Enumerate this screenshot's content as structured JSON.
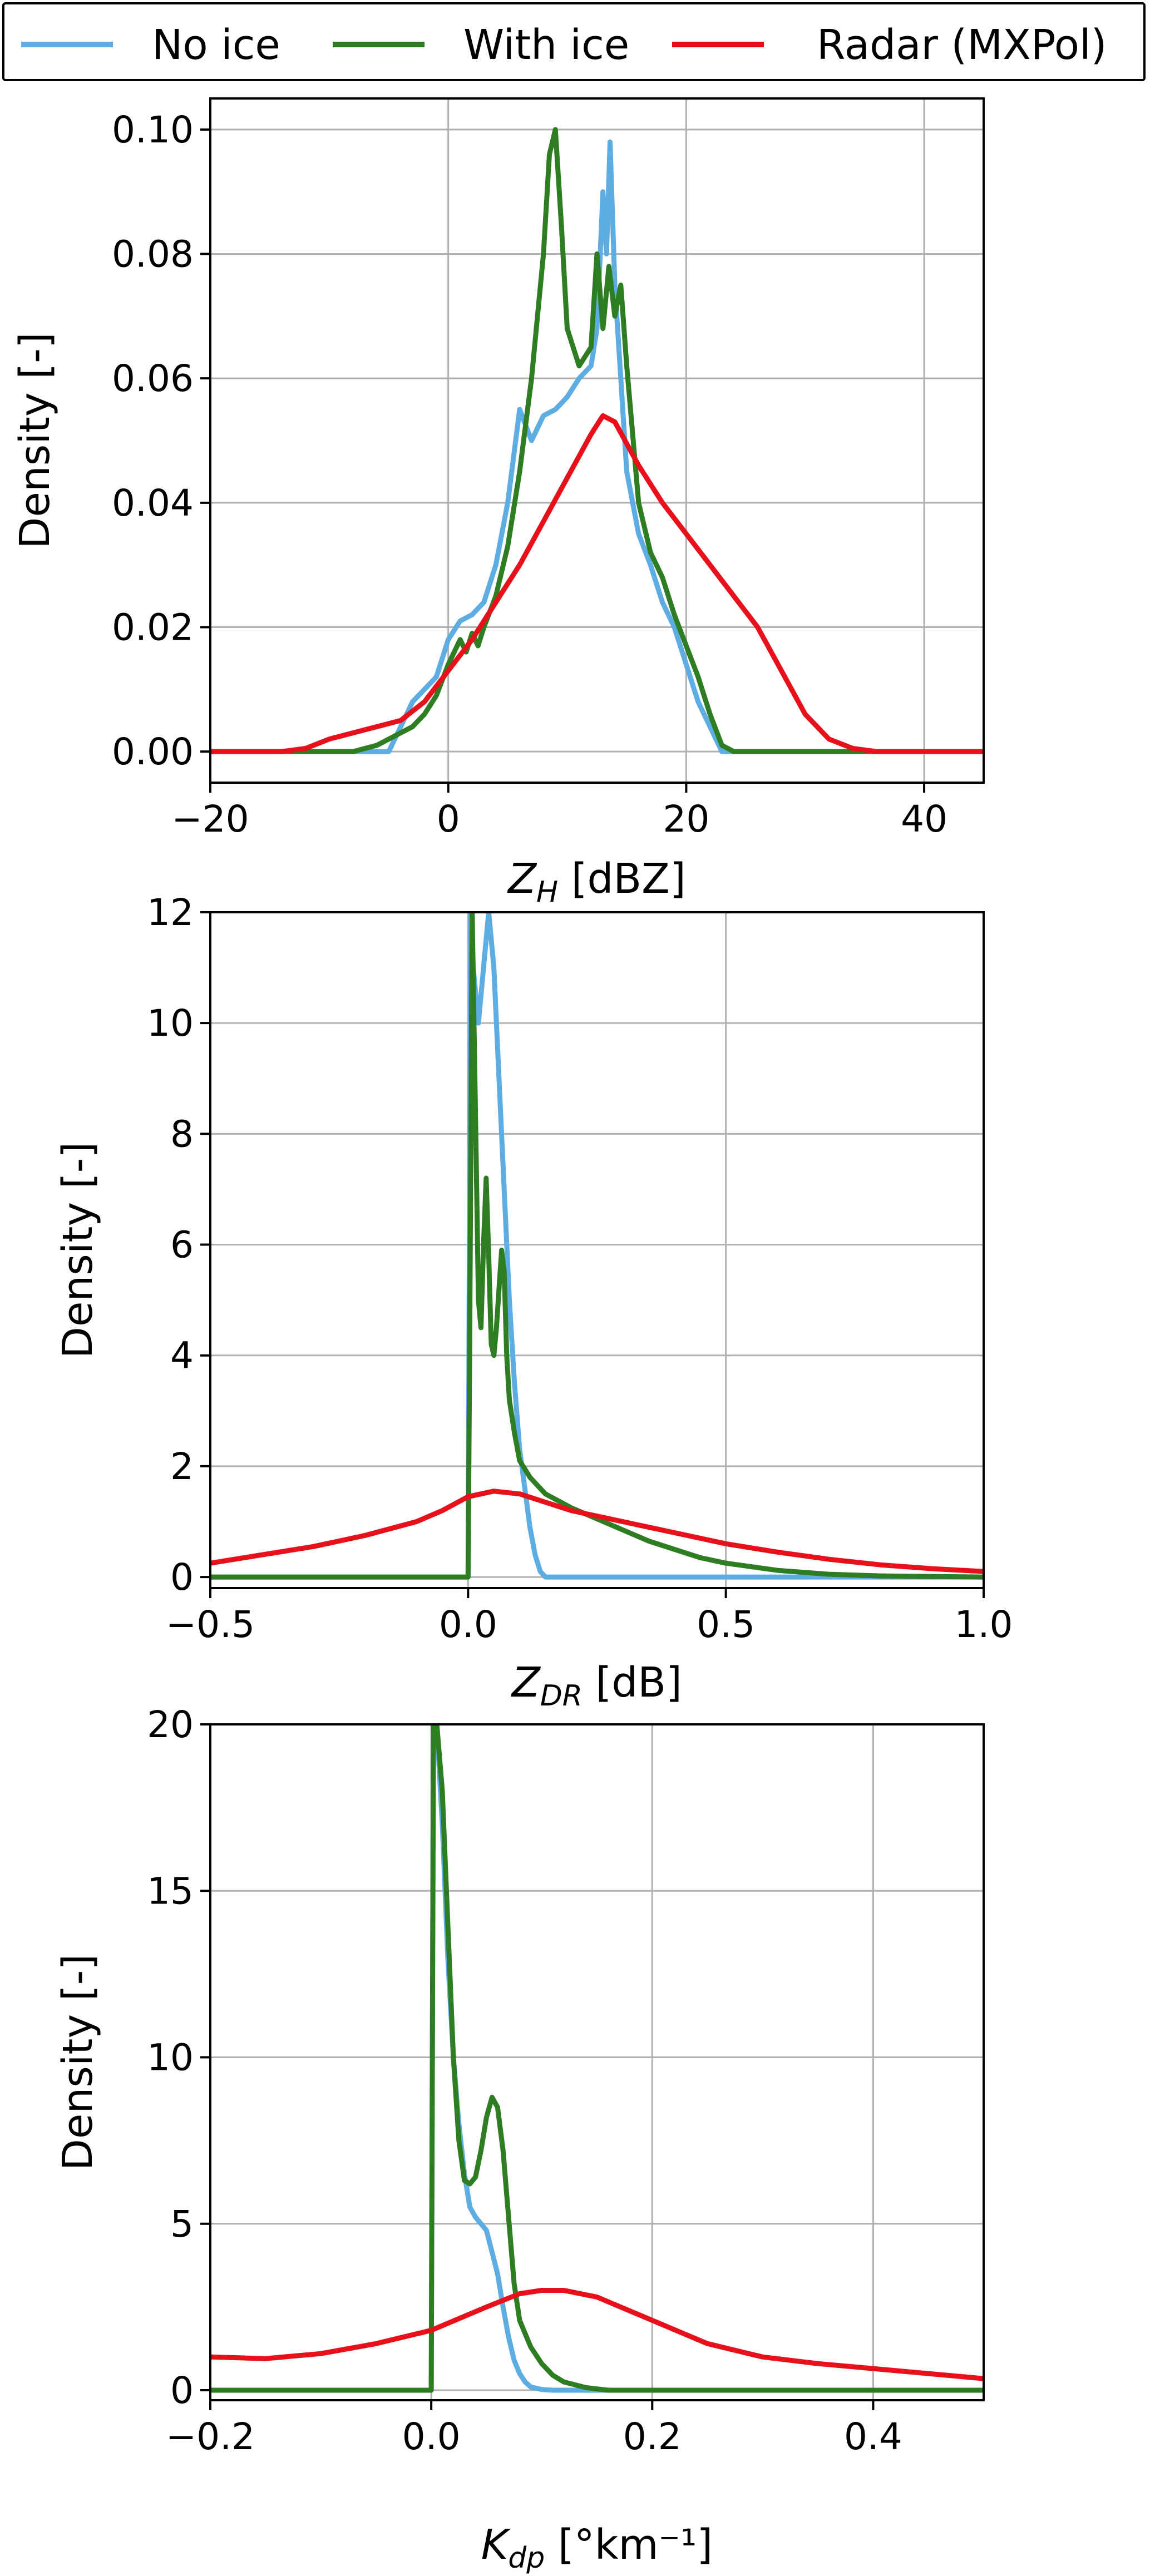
{
  "legend": {
    "placement": "top",
    "items": [
      {
        "label": "No ice",
        "color": "#5DADE2"
      },
      {
        "label": "With ice",
        "color": "#2E7D22"
      },
      {
        "label": "Radar (MXPol)",
        "color": "#E8101A"
      }
    ]
  },
  "chart_data": [
    {
      "type": "line",
      "xlabel": "Z",
      "xlabel_sub": "H",
      "xlabel_unit": " [dBZ]",
      "ylabel": "Density [-]",
      "xlim": [
        -20,
        45
      ],
      "ylim": [
        -0.005,
        0.105
      ],
      "xticks": [
        -20,
        0,
        20,
        40
      ],
      "xtick_labels": [
        "−20",
        "0",
        "20",
        "40"
      ],
      "yticks": [
        0,
        0.02,
        0.04,
        0.06,
        0.08,
        0.1
      ],
      "ytick_labels": [
        "0.00",
        "0.02",
        "0.04",
        "0.06",
        "0.08",
        "0.10"
      ],
      "grid": true,
      "series": [
        {
          "name": "No ice",
          "color": "#5DADE2",
          "x": [
            -20,
            -5,
            -4,
            -3,
            -2,
            -1,
            0,
            1,
            2,
            3,
            4,
            5,
            6,
            7,
            8,
            9,
            10,
            11,
            12,
            12.5,
            13,
            13.3,
            13.6,
            14,
            14.5,
            15,
            16,
            17,
            18,
            19,
            20,
            21,
            22,
            23,
            24,
            45
          ],
          "y": [
            0,
            0,
            0.004,
            0.008,
            0.01,
            0.012,
            0.018,
            0.021,
            0.022,
            0.024,
            0.03,
            0.04,
            0.055,
            0.05,
            0.054,
            0.055,
            0.057,
            0.06,
            0.062,
            0.068,
            0.09,
            0.08,
            0.098,
            0.075,
            0.06,
            0.045,
            0.035,
            0.03,
            0.024,
            0.02,
            0.014,
            0.008,
            0.004,
            0,
            0,
            0
          ]
        },
        {
          "name": "With ice",
          "color": "#2E7D22",
          "x": [
            -20,
            -8,
            -6,
            -4,
            -3,
            -2,
            -1,
            0,
            1,
            1.5,
            2,
            2.5,
            3,
            4,
            5,
            6,
            7,
            8,
            8.5,
            9,
            9.5,
            10,
            11,
            12,
            12.5,
            13,
            13.5,
            14,
            14.5,
            15,
            16,
            17,
            18,
            19,
            20,
            21,
            22,
            23,
            24,
            45
          ],
          "y": [
            0,
            0,
            0.001,
            0.003,
            0.004,
            0.006,
            0.009,
            0.014,
            0.018,
            0.016,
            0.019,
            0.017,
            0.02,
            0.025,
            0.033,
            0.045,
            0.06,
            0.08,
            0.096,
            0.1,
            0.085,
            0.068,
            0.062,
            0.065,
            0.08,
            0.068,
            0.078,
            0.07,
            0.075,
            0.062,
            0.04,
            0.032,
            0.028,
            0.022,
            0.017,
            0.012,
            0.006,
            0.001,
            0,
            0
          ]
        },
        {
          "name": "Radar (MXPol)",
          "color": "#E8101A",
          "x": [
            -20,
            -14,
            -12,
            -10,
            -8,
            -6,
            -4,
            -2,
            0,
            2,
            4,
            6,
            8,
            10,
            12,
            13,
            14,
            16,
            18,
            20,
            22,
            24,
            26,
            28,
            30,
            32,
            34,
            36,
            45
          ],
          "y": [
            0,
            0,
            0.0005,
            0.002,
            0.003,
            0.004,
            0.005,
            0.008,
            0.013,
            0.018,
            0.024,
            0.03,
            0.037,
            0.044,
            0.051,
            0.054,
            0.053,
            0.046,
            0.04,
            0.035,
            0.03,
            0.025,
            0.02,
            0.013,
            0.006,
            0.002,
            0.0005,
            0,
            0
          ]
        }
      ]
    },
    {
      "type": "line",
      "xlabel": "Z",
      "xlabel_sub": "DR",
      "xlabel_unit": " [dB]",
      "ylabel": "Density [-]",
      "xlim": [
        -0.5,
        1.0
      ],
      "ylim": [
        -0.2,
        12
      ],
      "xticks": [
        -0.5,
        0,
        0.5,
        1
      ],
      "xtick_labels": [
        "−0.5",
        "0.0",
        "0.5",
        "1.0"
      ],
      "yticks": [
        0,
        2,
        4,
        6,
        8,
        10,
        12
      ],
      "ytick_labels": [
        "0",
        "2",
        "4",
        "6",
        "8",
        "10",
        "12"
      ],
      "grid": true,
      "series": [
        {
          "name": "No ice",
          "color": "#5DADE2",
          "x": [
            -0.5,
            0,
            0.005,
            0.01,
            0.02,
            0.03,
            0.04,
            0.05,
            0.06,
            0.07,
            0.08,
            0.09,
            0.1,
            0.11,
            0.12,
            0.13,
            0.14,
            0.15,
            1.0
          ],
          "y": [
            0,
            0,
            12,
            11,
            10,
            11,
            12,
            11,
            9,
            7,
            5,
            3.5,
            2.3,
            1.6,
            0.9,
            0.4,
            0.1,
            0,
            0
          ]
        },
        {
          "name": "With ice",
          "color": "#2E7D22",
          "x": [
            -0.5,
            0,
            0.003,
            0.008,
            0.015,
            0.02,
            0.025,
            0.03,
            0.035,
            0.04,
            0.045,
            0.05,
            0.055,
            0.06,
            0.065,
            0.07,
            0.075,
            0.08,
            0.09,
            0.1,
            0.12,
            0.15,
            0.2,
            0.25,
            0.3,
            0.35,
            0.4,
            0.45,
            0.5,
            0.6,
            0.7,
            0.8,
            1.0
          ],
          "y": [
            0,
            0,
            4,
            12,
            8,
            5,
            4.5,
            6,
            7.2,
            5.8,
            4.2,
            4.0,
            4.5,
            5.2,
            5.9,
            5.5,
            4.0,
            3.2,
            2.6,
            2.1,
            1.8,
            1.5,
            1.25,
            1.05,
            0.85,
            0.65,
            0.5,
            0.35,
            0.25,
            0.12,
            0.05,
            0.02,
            0
          ]
        },
        {
          "name": "Radar (MXPol)",
          "color": "#E8101A",
          "x": [
            -0.5,
            -0.4,
            -0.3,
            -0.2,
            -0.1,
            -0.05,
            0,
            0.05,
            0.1,
            0.15,
            0.2,
            0.3,
            0.4,
            0.5,
            0.6,
            0.7,
            0.8,
            0.9,
            1.0
          ],
          "y": [
            0.25,
            0.4,
            0.55,
            0.75,
            1.0,
            1.2,
            1.45,
            1.55,
            1.5,
            1.35,
            1.2,
            1.0,
            0.8,
            0.6,
            0.45,
            0.32,
            0.22,
            0.15,
            0.1
          ]
        }
      ]
    },
    {
      "type": "line",
      "xlabel": "K",
      "xlabel_sub": "dp",
      "xlabel_unit": " [°km⁻¹]",
      "ylabel": "Density [-]",
      "xlim": [
        -0.2,
        0.5
      ],
      "ylim": [
        -0.3,
        20
      ],
      "xticks": [
        -0.2,
        0,
        0.2,
        0.4
      ],
      "xtick_labels": [
        "−0.2",
        "0.0",
        "0.2",
        "0.4"
      ],
      "yticks": [
        0,
        5,
        10,
        15,
        20
      ],
      "ytick_labels": [
        "0",
        "5",
        "10",
        "15",
        "20"
      ],
      "grid": true,
      "series": [
        {
          "name": "No ice",
          "color": "#5DADE2",
          "x": [
            -0.2,
            0,
            0.002,
            0.005,
            0.01,
            0.015,
            0.02,
            0.025,
            0.03,
            0.035,
            0.04,
            0.05,
            0.06,
            0.065,
            0.07,
            0.075,
            0.08,
            0.085,
            0.09,
            0.1,
            0.11,
            0.5
          ],
          "y": [
            0,
            0,
            20,
            20,
            17,
            13,
            10,
            8,
            6.5,
            5.5,
            5.2,
            4.8,
            3.5,
            2.5,
            1.6,
            0.9,
            0.5,
            0.25,
            0.1,
            0.02,
            0,
            0
          ]
        },
        {
          "name": "With ice",
          "color": "#2E7D22",
          "x": [
            -0.2,
            0,
            0.002,
            0.005,
            0.01,
            0.015,
            0.02,
            0.025,
            0.03,
            0.035,
            0.04,
            0.045,
            0.05,
            0.055,
            0.06,
            0.065,
            0.07,
            0.075,
            0.08,
            0.09,
            0.1,
            0.11,
            0.12,
            0.14,
            0.16,
            0.5
          ],
          "y": [
            0,
            0,
            20,
            20,
            18,
            14,
            10,
            7.5,
            6.3,
            6.2,
            6.4,
            7.2,
            8.2,
            8.8,
            8.5,
            7.2,
            5.2,
            3.2,
            2.1,
            1.3,
            0.8,
            0.45,
            0.25,
            0.08,
            0,
            0
          ]
        },
        {
          "name": "Radar (MXPol)",
          "color": "#E8101A",
          "x": [
            -0.2,
            -0.15,
            -0.1,
            -0.05,
            0,
            0.05,
            0.08,
            0.1,
            0.12,
            0.15,
            0.2,
            0.25,
            0.3,
            0.35,
            0.4,
            0.45,
            0.5
          ],
          "y": [
            1.0,
            0.95,
            1.1,
            1.4,
            1.8,
            2.5,
            2.9,
            3.0,
            3.0,
            2.8,
            2.1,
            1.4,
            1.0,
            0.8,
            0.65,
            0.5,
            0.35
          ]
        }
      ]
    }
  ]
}
